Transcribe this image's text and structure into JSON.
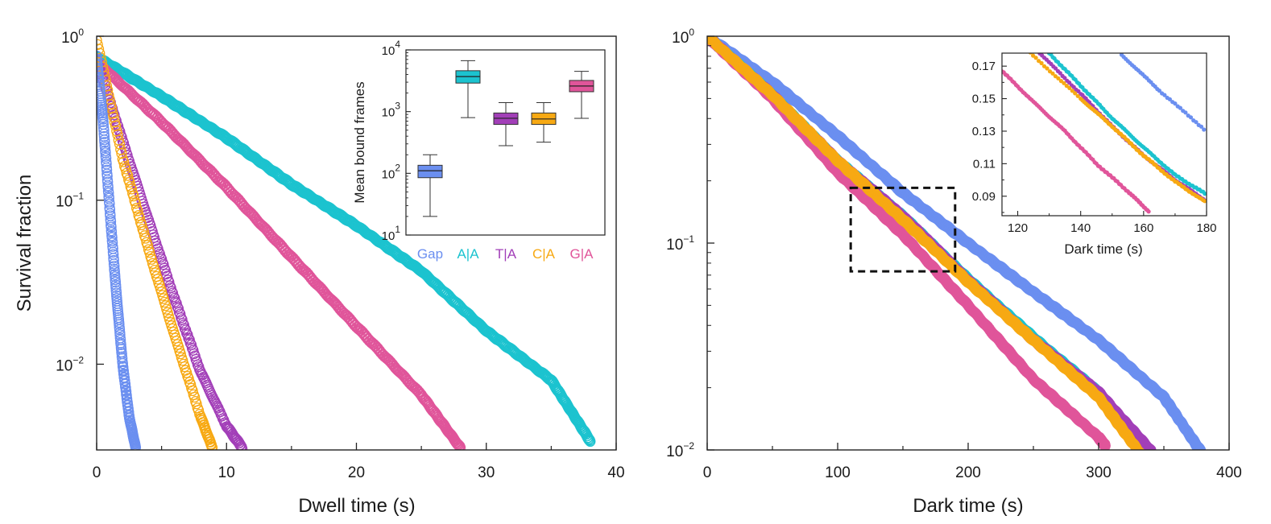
{
  "figure": {
    "colors": {
      "Gap": "#6b8ff0",
      "A|A": "#1cc3cf",
      "T|A": "#a23fb8",
      "C|A": "#f7a913",
      "G|A": "#e0559a",
      "axis": "#222222"
    }
  },
  "chart_data": [
    {
      "id": "dwell",
      "type": "scatter",
      "xlabel": "Dwell time (s)",
      "ylabel": "Survival fraction",
      "xlim": [
        0,
        40
      ],
      "ylim": [
        0.003,
        1
      ],
      "yscale": "log",
      "xticks": [
        "0",
        "10",
        "20",
        "30",
        "40"
      ],
      "yticks": [
        {
          "base": "10",
          "exp": "0",
          "value": 1
        },
        {
          "base": "10",
          "exp": "−1",
          "value": 0.1
        },
        {
          "base": "10",
          "exp": "−2",
          "value": 0.01
        }
      ],
      "series": [
        {
          "name": "Gap",
          "x": [
            0,
            0.5,
            1.0,
            1.5,
            2.0,
            2.5,
            3.0
          ],
          "y": [
            0.75,
            0.3,
            0.09,
            0.028,
            0.01,
            0.0048,
            0.0031
          ]
        },
        {
          "name": "A|A",
          "x": [
            0,
            5,
            10,
            15,
            20,
            25,
            30,
            35,
            38
          ],
          "y": [
            0.75,
            0.43,
            0.24,
            0.125,
            0.07,
            0.037,
            0.016,
            0.008,
            0.0034
          ]
        },
        {
          "name": "T|A",
          "x": [
            0,
            2,
            4,
            6,
            8,
            10,
            11.2
          ],
          "y": [
            0.72,
            0.23,
            0.075,
            0.025,
            0.009,
            0.0042,
            0.0031
          ]
        },
        {
          "name": "C|A",
          "x": [
            0,
            2,
            4,
            6,
            8,
            8.9
          ],
          "y": [
            0.95,
            0.18,
            0.05,
            0.015,
            0.0048,
            0.0031
          ]
        },
        {
          "name": "G|A",
          "x": [
            0,
            5,
            10,
            15,
            20,
            25,
            28
          ],
          "y": [
            0.7,
            0.3,
            0.12,
            0.045,
            0.017,
            0.0065,
            0.0031
          ]
        }
      ],
      "inset": {
        "type": "box",
        "ylabel": "Mean bound frames",
        "yscale": "log",
        "ylim": [
          10,
          10000
        ],
        "yticks": [
          {
            "base": "10",
            "exp": "4",
            "value": 10000
          },
          {
            "base": "10",
            "exp": "3",
            "value": 1000
          },
          {
            "base": "10",
            "exp": "2",
            "value": 100
          },
          {
            "base": "10",
            "exp": "1",
            "value": 10
          }
        ],
        "categories": [
          "Gap",
          "A|A",
          "T|A",
          "C|A",
          "G|A"
        ],
        "boxes": [
          {
            "name": "Gap",
            "whisker_low": 20,
            "q1": 85,
            "median": 110,
            "q3": 135,
            "whisker_high": 200
          },
          {
            "name": "A|A",
            "whisker_low": 800,
            "q1": 2900,
            "median": 3700,
            "q3": 4600,
            "whisker_high": 6700
          },
          {
            "name": "T|A",
            "whisker_low": 280,
            "q1": 620,
            "median": 780,
            "q3": 950,
            "whisker_high": 1400
          },
          {
            "name": "C|A",
            "whisker_low": 320,
            "q1": 620,
            "median": 760,
            "q3": 950,
            "whisker_high": 1400
          },
          {
            "name": "G|A",
            "whisker_low": 780,
            "q1": 2100,
            "median": 2600,
            "q3": 3200,
            "whisker_high": 4500
          }
        ]
      }
    },
    {
      "id": "dark",
      "type": "scatter",
      "xlabel": "Dark time (s)",
      "xlim": [
        0,
        400
      ],
      "ylim": [
        0.01,
        1
      ],
      "yscale": "log",
      "xticks": [
        "0",
        "100",
        "200",
        "300",
        "400"
      ],
      "yticks": [
        {
          "base": "10",
          "exp": "0",
          "value": 1
        },
        {
          "base": "10",
          "exp": "−1",
          "value": 0.1
        },
        {
          "base": "10",
          "exp": "−2",
          "value": 0.01
        }
      ],
      "series": [
        {
          "name": "Gap",
          "x": [
            0,
            50,
            100,
            150,
            200,
            250,
            300,
            350,
            378
          ],
          "y": [
            1,
            0.6,
            0.33,
            0.175,
            0.1,
            0.058,
            0.034,
            0.018,
            0.0099
          ]
        },
        {
          "name": "A|A",
          "x": [
            0,
            50,
            100,
            150,
            200,
            250,
            300,
            336
          ],
          "y": [
            1,
            0.52,
            0.25,
            0.135,
            0.067,
            0.035,
            0.019,
            0.0097
          ]
        },
        {
          "name": "T|A",
          "x": [
            0,
            50,
            100,
            150,
            200,
            250,
            300,
            340
          ],
          "y": [
            1,
            0.52,
            0.25,
            0.135,
            0.066,
            0.034,
            0.019,
            0.0099
          ]
        },
        {
          "name": "C|A",
          "x": [
            0,
            50,
            100,
            150,
            200,
            250,
            300,
            332
          ],
          "y": [
            1,
            0.52,
            0.25,
            0.13,
            0.065,
            0.034,
            0.018,
            0.0096
          ]
        },
        {
          "name": "G|A",
          "x": [
            0,
            50,
            100,
            150,
            200,
            250,
            300,
            305
          ],
          "y": [
            1,
            0.5,
            0.22,
            0.11,
            0.05,
            0.022,
            0.0115,
            0.0105
          ]
        }
      ],
      "zoom_box": {
        "x": [
          110,
          190
        ],
        "y": [
          0.073,
          0.185
        ]
      },
      "inset": {
        "type": "scatter",
        "xlabel": "Dark time (s)",
        "xlim": [
          115,
          180
        ],
        "ylim": [
          0.078,
          0.178
        ],
        "xticks": [
          "120",
          "140",
          "160",
          "180"
        ],
        "yticks": [
          "0.17",
          "0.15",
          "0.13",
          "0.11",
          "0.09"
        ],
        "series": [
          {
            "name": "Gap",
            "x": [
              153,
              165,
              180
            ],
            "y": [
              0.177,
              0.155,
              0.13
            ]
          },
          {
            "name": "A|A",
            "x": [
              130,
              140,
              150,
              160,
              170,
              180
            ],
            "y": [
              0.178,
              0.158,
              0.138,
              0.12,
              0.103,
              0.091
            ]
          },
          {
            "name": "T|A",
            "x": [
              127,
              140,
              150,
              160,
              170,
              180
            ],
            "y": [
              0.178,
              0.153,
              0.133,
              0.115,
              0.1,
              0.087
            ]
          },
          {
            "name": "C|A",
            "x": [
              124,
              140,
              150,
              160,
              170,
              180
            ],
            "y": [
              0.178,
              0.15,
              0.133,
              0.115,
              0.099,
              0.086
            ]
          },
          {
            "name": "G|A",
            "x": [
              115,
              125,
              135,
              145,
              155,
              162
            ],
            "y": [
              0.167,
              0.148,
              0.13,
              0.11,
              0.093,
              0.08
            ]
          }
        ]
      }
    }
  ]
}
